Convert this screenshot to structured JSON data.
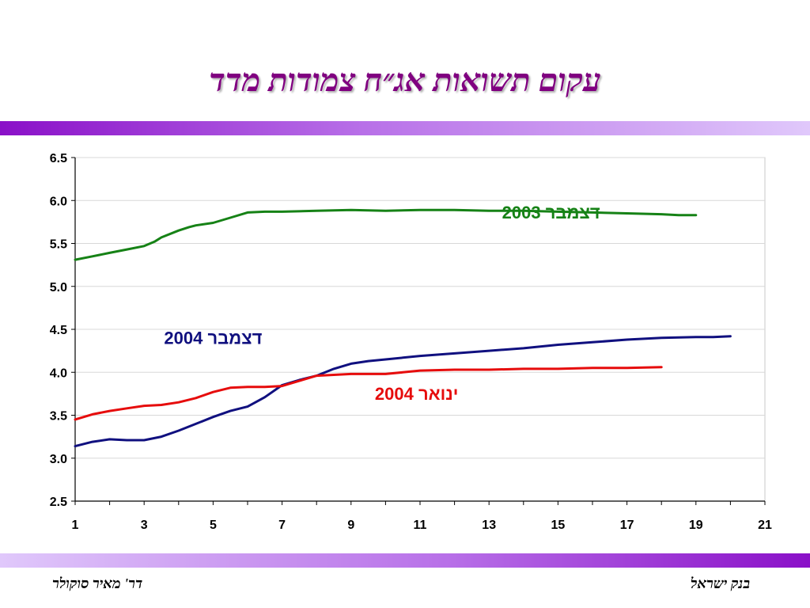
{
  "title": "עקום תשואות אג״ח צמודות מדד",
  "footer": {
    "left": "דר' מאיר סוקולר",
    "right": "בנק ישראל"
  },
  "colors": {
    "title": "#800080",
    "band_dark": "#8a10c8",
    "band_light": "#e0c8fb"
  },
  "chart_data": {
    "type": "line",
    "title": "",
    "xlabel": "",
    "ylabel": "",
    "xlim": [
      1,
      21
    ],
    "ylim": [
      2.5,
      6.5
    ],
    "xticks": [
      1,
      3,
      5,
      7,
      9,
      11,
      13,
      15,
      17,
      19,
      21
    ],
    "yticks": [
      2.5,
      3.0,
      3.5,
      4.0,
      4.5,
      5.0,
      5.5,
      6.0,
      6.5
    ],
    "grid": "horizontal",
    "series": [
      {
        "name": "דצמבר 2003",
        "color": "#168216",
        "points": [
          [
            1,
            5.31
          ],
          [
            1.5,
            5.35
          ],
          [
            2,
            5.39
          ],
          [
            2.5,
            5.43
          ],
          [
            3,
            5.47
          ],
          [
            3.3,
            5.52
          ],
          [
            3.5,
            5.57
          ],
          [
            4,
            5.65
          ],
          [
            4.3,
            5.69
          ],
          [
            4.5,
            5.71
          ],
          [
            5,
            5.74
          ],
          [
            5.5,
            5.8
          ],
          [
            6,
            5.86
          ],
          [
            6.5,
            5.87
          ],
          [
            7,
            5.87
          ],
          [
            8,
            5.88
          ],
          [
            9,
            5.89
          ],
          [
            10,
            5.88
          ],
          [
            11,
            5.89
          ],
          [
            12,
            5.89
          ],
          [
            13,
            5.88
          ],
          [
            14,
            5.88
          ],
          [
            15,
            5.87
          ],
          [
            16,
            5.86
          ],
          [
            17,
            5.85
          ],
          [
            18,
            5.84
          ],
          [
            18.5,
            5.83
          ],
          [
            19,
            5.83
          ]
        ]
      },
      {
        "name": "דצמבר 2004",
        "color": "#10107f",
        "points": [
          [
            1,
            3.14
          ],
          [
            1.5,
            3.19
          ],
          [
            2,
            3.22
          ],
          [
            2.5,
            3.21
          ],
          [
            3,
            3.21
          ],
          [
            3.5,
            3.25
          ],
          [
            4,
            3.32
          ],
          [
            4.5,
            3.4
          ],
          [
            5,
            3.48
          ],
          [
            5.5,
            3.55
          ],
          [
            6,
            3.6
          ],
          [
            6.5,
            3.71
          ],
          [
            7,
            3.85
          ],
          [
            7.5,
            3.91
          ],
          [
            8,
            3.96
          ],
          [
            8.5,
            4.04
          ],
          [
            9,
            4.1
          ],
          [
            9.5,
            4.13
          ],
          [
            10,
            4.15
          ],
          [
            11,
            4.19
          ],
          [
            12,
            4.22
          ],
          [
            13,
            4.25
          ],
          [
            14,
            4.28
          ],
          [
            15,
            4.32
          ],
          [
            16,
            4.35
          ],
          [
            17,
            4.38
          ],
          [
            18,
            4.4
          ],
          [
            19,
            4.41
          ],
          [
            19.5,
            4.41
          ],
          [
            20,
            4.42
          ]
        ]
      },
      {
        "name": "ינואר 2004",
        "color": "#e60c0c",
        "points": [
          [
            1,
            3.45
          ],
          [
            1.5,
            3.51
          ],
          [
            2,
            3.55
          ],
          [
            2.5,
            3.58
          ],
          [
            3,
            3.61
          ],
          [
            3.5,
            3.62
          ],
          [
            4,
            3.65
          ],
          [
            4.5,
            3.7
          ],
          [
            5,
            3.77
          ],
          [
            5.5,
            3.82
          ],
          [
            6,
            3.83
          ],
          [
            6.5,
            3.83
          ],
          [
            7,
            3.84
          ],
          [
            7.5,
            3.9
          ],
          [
            8,
            3.96
          ],
          [
            9,
            3.98
          ],
          [
            10,
            3.98
          ],
          [
            10.5,
            4.0
          ],
          [
            11,
            4.02
          ],
          [
            12,
            4.03
          ],
          [
            13,
            4.03
          ],
          [
            14,
            4.04
          ],
          [
            15,
            4.04
          ],
          [
            16,
            4.05
          ],
          [
            17,
            4.05
          ],
          [
            18,
            4.06
          ]
        ]
      }
    ],
    "labels": [
      {
        "text": "דצמבר 2003",
        "series": 0,
        "x": 14.8,
        "y": 5.79
      },
      {
        "text": "דצמבר 2004",
        "series": 1,
        "x": 5.0,
        "y": 4.33
      },
      {
        "text": "ינואר 2004",
        "series": 2,
        "x": 10.9,
        "y": 3.68
      }
    ]
  }
}
